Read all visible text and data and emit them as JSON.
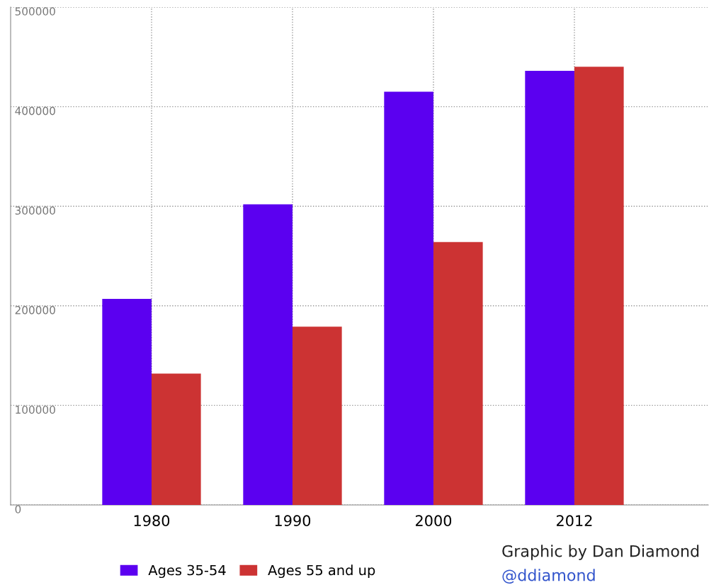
{
  "chart_data": {
    "type": "bar",
    "categories": [
      "1980",
      "1990",
      "2000",
      "2012"
    ],
    "series": [
      {
        "name": "Ages 35-54",
        "color": "#5b00f0",
        "values": [
          207000,
          302000,
          415000,
          436000
        ]
      },
      {
        "name": "Ages 55 and up",
        "color": "#cc3333",
        "values": [
          132000,
          179000,
          264000,
          440000
        ]
      }
    ],
    "ylim": [
      0,
      500000
    ],
    "yticks": [
      0,
      100000,
      200000,
      300000,
      400000,
      500000
    ],
    "grid": true,
    "legend": "bottom",
    "annotations": [
      "Graphic by Dan Diamond",
      "@ddiamond"
    ]
  }
}
